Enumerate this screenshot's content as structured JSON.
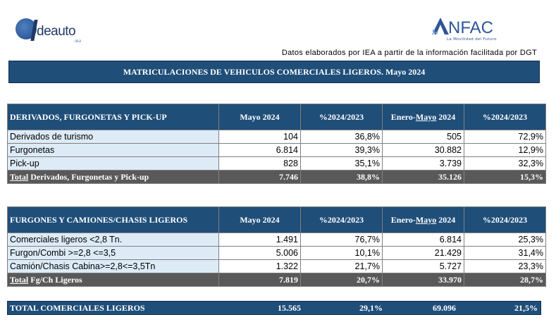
{
  "logos": {
    "left_text": "deauto",
    "left_sub": "iea",
    "right_text": "NFAC",
    "right_tag": "La Movilidad del Futuro"
  },
  "source_note": "Datos elaborados por IEA a partir de la información facilitada por DGT",
  "banner_title": "MATRICULACIONES DE VEHICULOS COMERCIALES LIGEROS. Mayo 2024",
  "table1": {
    "header": [
      "DERIVADOS, FURGONETAS Y PICK-UP",
      "Mayo 2024",
      "%2024/2023",
      "Enero-",
      "Mayo",
      " 2024",
      "%2024/2023"
    ],
    "rows": [
      [
        "Derivados de turismo",
        "104",
        "36,8%",
        "505",
        "72,9%"
      ],
      [
        "Furgonetas",
        "6.814",
        "39,3%",
        "30.882",
        "12,9%"
      ],
      [
        "Pick-up",
        "828",
        "35,1%",
        "3.739",
        "32,3%"
      ]
    ],
    "total": [
      "Total",
      " Derivados, Furgonetas y Pick-up",
      "7.746",
      "38,8%",
      "35.126",
      "15,3%"
    ]
  },
  "table2": {
    "header": [
      "FURGONES Y CAMIONES/CHASIS LIGEROS",
      "Mayo 2024",
      "%2024/2023",
      "Enero-",
      "Mayo",
      " 2024",
      "%2024/2023"
    ],
    "rows": [
      [
        "Comerciales ligeros <2,8 Tn.",
        "1.491",
        "76,7%",
        "6.814",
        "25,3%"
      ],
      [
        "Furgon/Combi >=2,8 <=3,5",
        "5.006",
        "10,1%",
        "21.429",
        "31,4%"
      ],
      [
        "Camión/Chasis Cabina>=2,8<=3,5Tn",
        "1.322",
        "21,7%",
        "5.727",
        "23,3%"
      ]
    ],
    "total": [
      "Total",
      " Fg/Ch Ligeros",
      "7.819",
      "20,7%",
      "33.970",
      "28,7%"
    ]
  },
  "grand_total": [
    "TOTAL  COMERCIALES LIGEROS",
    "15.565",
    "29,1%",
    "69.096",
    "21,5%"
  ],
  "colors": {
    "header_bg": "#1f4e79",
    "label_bg": "#ddebf7",
    "total_bg": "#595959"
  }
}
